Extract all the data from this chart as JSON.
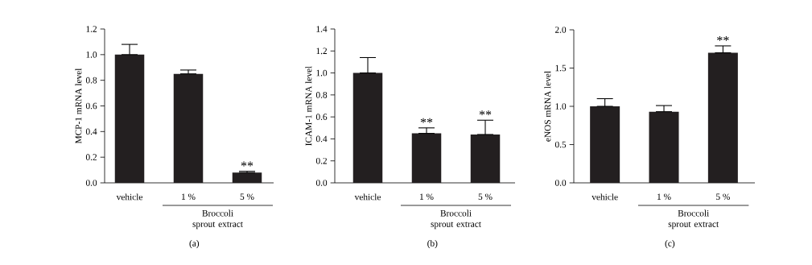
{
  "chart_data": [
    {
      "type": "bar",
      "categories": [
        "vehicle",
        "1 %",
        "5 %"
      ],
      "values": [
        1.0,
        0.85,
        0.08
      ],
      "errors": [
        [
          1.0,
          1.08
        ],
        [
          0.85,
          0.88
        ],
        [
          0.08,
          0.09
        ]
      ],
      "color": "#231f20",
      "ylabel": "MCP-1 mRNA level",
      "ylim": [
        0,
        1.2
      ],
      "yticks": [
        {
          "value": 0,
          "label": "0.0"
        },
        0.2,
        0.4,
        0.6,
        0.8,
        {
          "value": 1.0,
          "label": "1.0"
        },
        1.2
      ],
      "annotations": [
        "Broccoli sprout extract",
        "(a)",
        {
          "text": "**",
          "x": "5 %",
          "y": 0.09
        }
      ]
    },
    {
      "type": "bar",
      "categories": [
        "vehicle",
        "1 %",
        "5 %"
      ],
      "values": [
        1.0,
        0.45,
        0.44
      ],
      "errors": [
        [
          1.0,
          1.14
        ],
        [
          0.45,
          0.5
        ],
        [
          0.44,
          0.57
        ]
      ],
      "color": "#231f20",
      "ylabel": "ICAM-1 mRNA level",
      "ylim": [
        0,
        1.4
      ],
      "yticks": [
        {
          "value": 0,
          "label": "0.0"
        },
        0.2,
        0.4,
        0.6,
        0.8,
        {
          "value": 1.0,
          "label": "1.0"
        },
        1.2,
        1.4
      ],
      "annotations": [
        "Broccoli sprout extract",
        "(b)",
        {
          "text": "**",
          "x": "1 %",
          "y": 0.5
        },
        {
          "text": "**",
          "x": "5 %",
          "y": 0.57
        }
      ]
    },
    {
      "type": "bar",
      "categories": [
        "vehicle",
        "1 %",
        "5 %"
      ],
      "values": [
        1.0,
        0.93,
        1.7
      ],
      "errors": [
        [
          1.0,
          1.1
        ],
        [
          0.93,
          1.01
        ],
        [
          1.7,
          1.79
        ]
      ],
      "color": "#231f20",
      "ylabel": "eNOS mRNA level",
      "ylim": [
        0,
        2.0
      ],
      "yticks": [
        {
          "value": 0,
          "label": "0.0"
        },
        0.5,
        {
          "value": 1.0,
          "label": "1.0"
        },
        1.5,
        {
          "value": 2.0,
          "label": "2.0"
        }
      ],
      "annotations": [
        "Broccoli sprout extract",
        "(c)",
        {
          "text": "**",
          "x": "5 %",
          "y": 1.79
        }
      ]
    }
  ]
}
